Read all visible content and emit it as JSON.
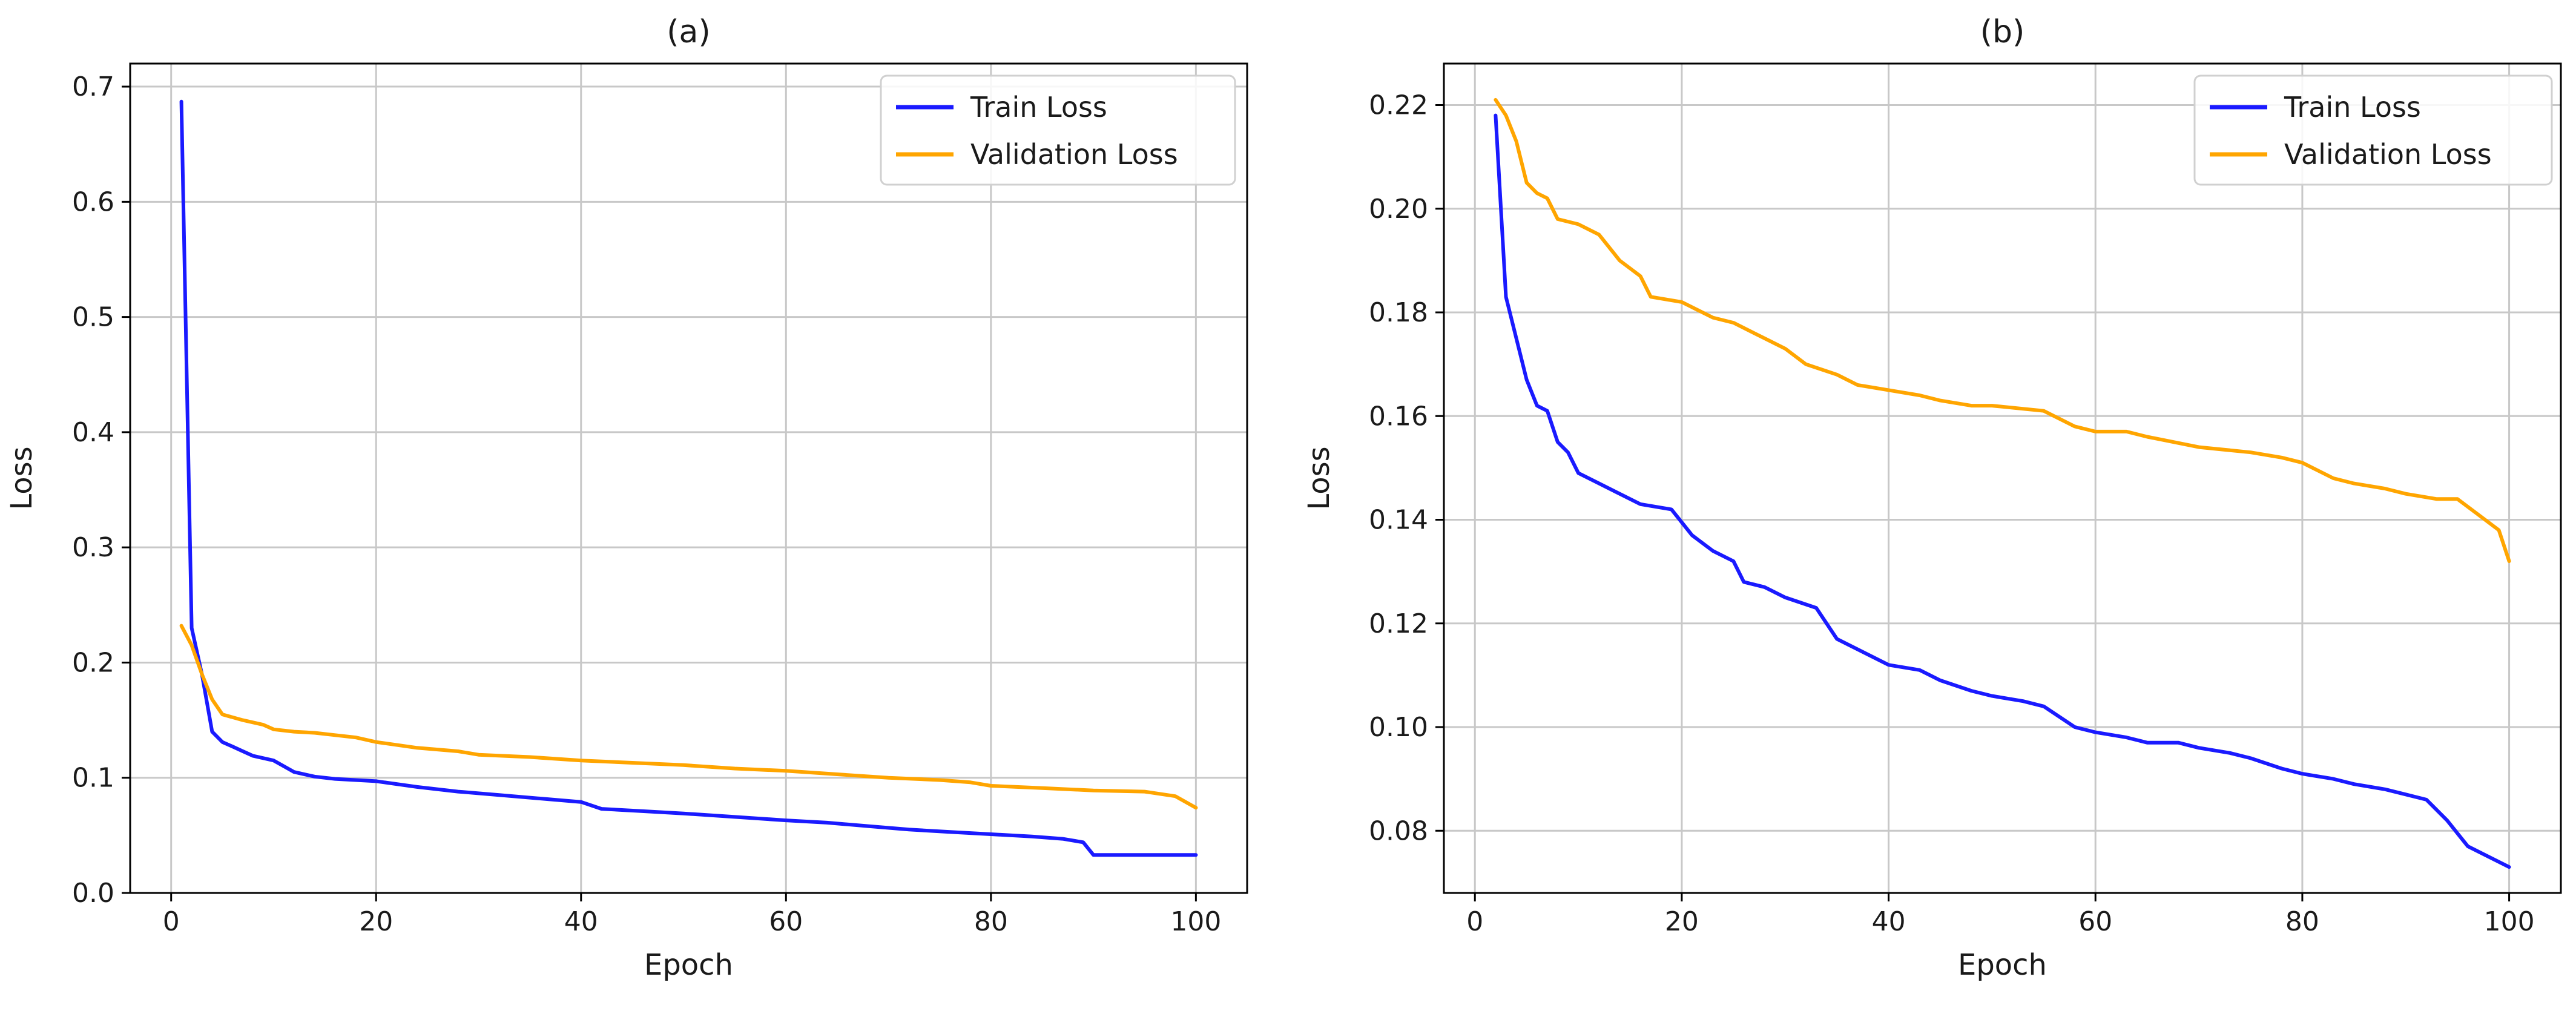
{
  "colors": {
    "train": "#1a1aff",
    "validation": "#ffa500",
    "grid": "#c8c8c8",
    "axis": "#000000"
  },
  "chart_data": [
    {
      "type": "line",
      "title": "(a)",
      "xlabel": "Epoch",
      "ylabel": "Loss",
      "xlim": [
        -4,
        105
      ],
      "ylim": [
        0.0,
        0.72
      ],
      "xticks": [
        0,
        20,
        40,
        60,
        80,
        100
      ],
      "yticks": [
        0.0,
        0.1,
        0.2,
        0.3,
        0.4,
        0.5,
        0.6,
        0.7
      ],
      "xtick_labels": [
        "0",
        "20",
        "40",
        "60",
        "80",
        "100"
      ],
      "ytick_labels": [
        "0.0",
        "0.1",
        "0.2",
        "0.3",
        "0.4",
        "0.5",
        "0.6",
        "0.7"
      ],
      "grid": true,
      "legend_position": "top-right",
      "series": [
        {
          "name": "Train Loss",
          "color": "#1a1aff",
          "x": [
            1,
            2,
            3,
            4,
            5,
            6,
            7,
            8,
            10,
            12,
            14,
            16,
            20,
            24,
            28,
            32,
            36,
            40,
            42,
            46,
            50,
            55,
            60,
            64,
            68,
            72,
            76,
            80,
            84,
            87,
            89,
            90,
            95,
            100
          ],
          "y": [
            0.687,
            0.23,
            0.19,
            0.14,
            0.131,
            0.127,
            0.123,
            0.119,
            0.115,
            0.105,
            0.101,
            0.099,
            0.097,
            0.092,
            0.088,
            0.085,
            0.082,
            0.079,
            0.073,
            0.071,
            0.069,
            0.066,
            0.063,
            0.061,
            0.058,
            0.055,
            0.053,
            0.051,
            0.049,
            0.047,
            0.044,
            0.033,
            0.033,
            0.033
          ]
        },
        {
          "name": "Validation Loss",
          "color": "#ffa500",
          "x": [
            1,
            2,
            3,
            4,
            5,
            7,
            9,
            10,
            12,
            14,
            16,
            18,
            20,
            24,
            28,
            30,
            35,
            40,
            45,
            50,
            55,
            60,
            65,
            70,
            75,
            78,
            80,
            85,
            90,
            95,
            98,
            100
          ],
          "y": [
            0.232,
            0.215,
            0.19,
            0.168,
            0.155,
            0.15,
            0.146,
            0.142,
            0.14,
            0.139,
            0.137,
            0.135,
            0.131,
            0.126,
            0.123,
            0.12,
            0.118,
            0.115,
            0.113,
            0.111,
            0.108,
            0.106,
            0.103,
            0.1,
            0.098,
            0.096,
            0.093,
            0.091,
            0.089,
            0.088,
            0.084,
            0.074
          ]
        }
      ]
    },
    {
      "type": "line",
      "title": "(b)",
      "xlabel": "Epoch",
      "ylabel": "Loss",
      "xlim": [
        -3,
        105
      ],
      "ylim": [
        0.068,
        0.228
      ],
      "xticks": [
        0,
        20,
        40,
        60,
        80,
        100
      ],
      "yticks": [
        0.08,
        0.1,
        0.12,
        0.14,
        0.16,
        0.18,
        0.2,
        0.22
      ],
      "xtick_labels": [
        "0",
        "20",
        "40",
        "60",
        "80",
        "100"
      ],
      "ytick_labels": [
        "0.08",
        "0.10",
        "0.12",
        "0.14",
        "0.16",
        "0.18",
        "0.20",
        "0.22"
      ],
      "grid": true,
      "legend_position": "top-right",
      "series": [
        {
          "name": "Train Loss",
          "color": "#1a1aff",
          "x": [
            2,
            3,
            4,
            5,
            6,
            7,
            8,
            9,
            10,
            12,
            14,
            16,
            19,
            21,
            23,
            25,
            26,
            28,
            30,
            33,
            35,
            37,
            40,
            43,
            45,
            48,
            50,
            53,
            55,
            58,
            60,
            63,
            65,
            68,
            70,
            73,
            75,
            78,
            80,
            83,
            85,
            88,
            90,
            92,
            94,
            96,
            98,
            100
          ],
          "y": [
            0.218,
            0.183,
            0.175,
            0.167,
            0.162,
            0.161,
            0.155,
            0.153,
            0.149,
            0.147,
            0.145,
            0.143,
            0.142,
            0.137,
            0.134,
            0.132,
            0.128,
            0.127,
            0.125,
            0.123,
            0.117,
            0.115,
            0.112,
            0.111,
            0.109,
            0.107,
            0.106,
            0.105,
            0.104,
            0.1,
            0.099,
            0.098,
            0.097,
            0.097,
            0.096,
            0.095,
            0.094,
            0.092,
            0.091,
            0.09,
            0.089,
            0.088,
            0.087,
            0.086,
            0.082,
            0.077,
            0.075,
            0.073
          ]
        },
        {
          "name": "Validation Loss",
          "color": "#ffa500",
          "x": [
            2,
            3,
            4,
            5,
            6,
            7,
            8,
            10,
            12,
            14,
            16,
            17,
            20,
            23,
            25,
            27,
            30,
            32,
            35,
            37,
            40,
            43,
            45,
            48,
            50,
            55,
            58,
            60,
            63,
            65,
            70,
            75,
            78,
            80,
            83,
            85,
            88,
            90,
            93,
            95,
            97,
            99,
            100
          ],
          "y": [
            0.221,
            0.218,
            0.213,
            0.205,
            0.203,
            0.202,
            0.198,
            0.197,
            0.195,
            0.19,
            0.187,
            0.183,
            0.182,
            0.179,
            0.178,
            0.176,
            0.173,
            0.17,
            0.168,
            0.166,
            0.165,
            0.164,
            0.163,
            0.162,
            0.162,
            0.161,
            0.158,
            0.157,
            0.157,
            0.156,
            0.154,
            0.153,
            0.152,
            0.151,
            0.148,
            0.147,
            0.146,
            0.145,
            0.144,
            0.144,
            0.141,
            0.138,
            0.132
          ]
        }
      ]
    }
  ]
}
